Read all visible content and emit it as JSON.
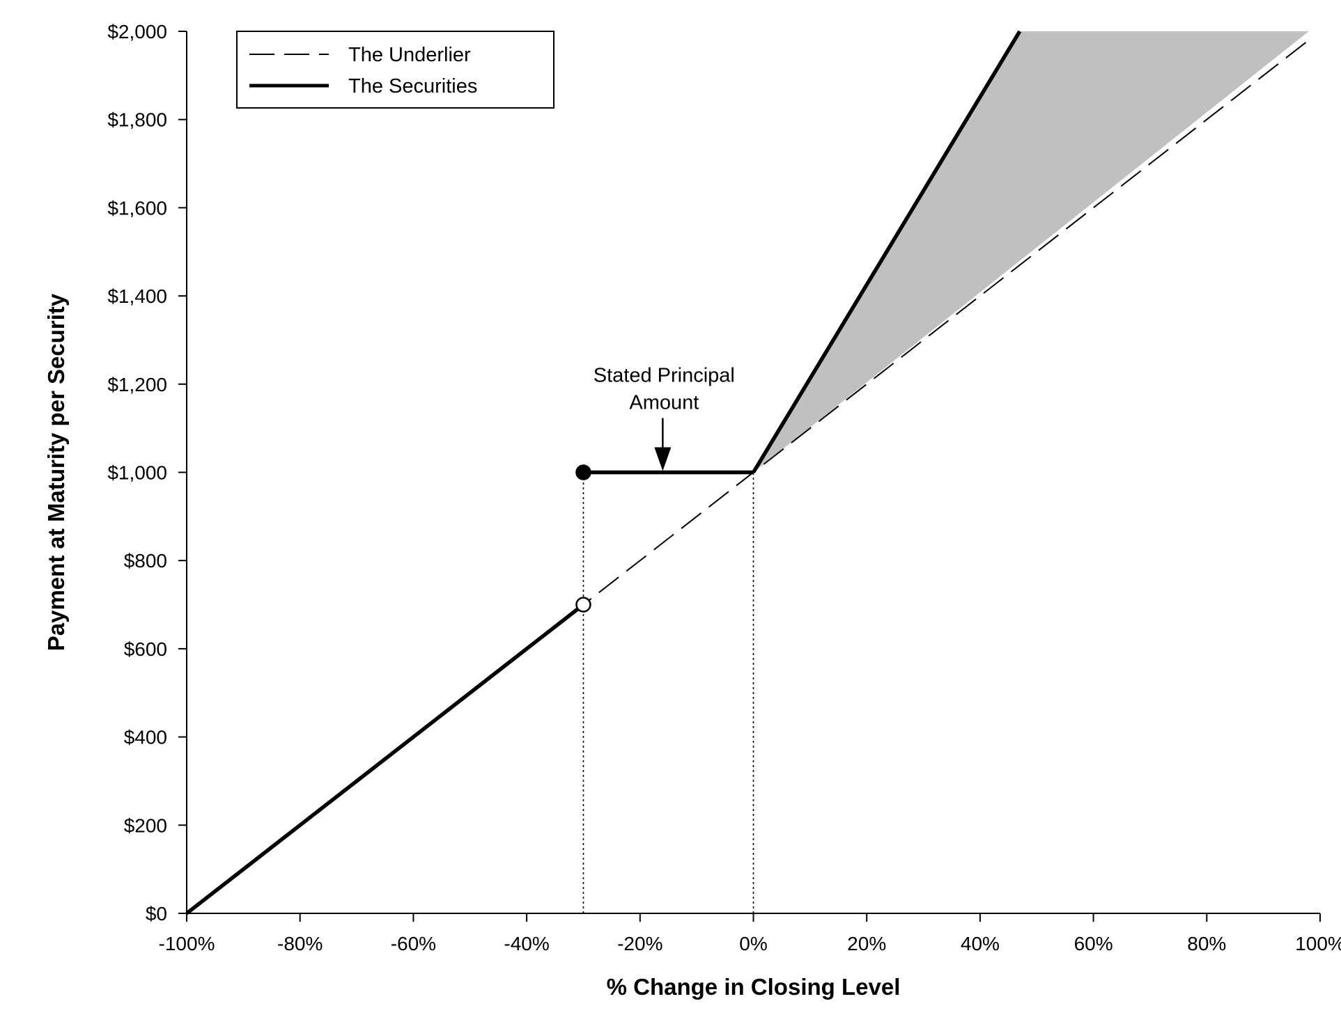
{
  "chart_data": {
    "type": "line",
    "xlabel": "% Change in Closing Level",
    "ylabel": "Payment at Maturity per Security",
    "xlim": [
      -100,
      100
    ],
    "ylim": [
      0,
      2000
    ],
    "x_ticks": [
      -100,
      -80,
      -60,
      -40,
      -20,
      0,
      20,
      40,
      60,
      80,
      100
    ],
    "x_tick_labels": [
      "-100%",
      "-80%",
      "-60%",
      "-40%",
      "-20%",
      "0%",
      "20%",
      "40%",
      "60%",
      "80%",
      "100%"
    ],
    "y_ticks": [
      0,
      200,
      400,
      600,
      800,
      1000,
      1200,
      1400,
      1600,
      1800,
      2000
    ],
    "y_tick_labels": [
      "$0",
      "$200",
      "$400",
      "$600",
      "$800",
      "$1,000",
      "$1,200",
      "$1,400",
      "$1,600",
      "$1,800",
      "$2,000"
    ],
    "grid": false,
    "legend_position": "top-left",
    "series": [
      {
        "name": "The Underlier",
        "style": "dashed",
        "color": "#000000",
        "points": [
          [
            -100,
            0
          ],
          [
            98,
            1980
          ]
        ]
      },
      {
        "name": "The Securities",
        "style": "solid-thick",
        "color": "#000000",
        "segments": [
          [
            [
              -100,
              0
            ],
            [
              -30,
              700
            ]
          ],
          [
            [
              -30,
              1000
            ],
            [
              0,
              1000
            ]
          ],
          [
            [
              0,
              1000
            ],
            [
              47,
              2000
            ]
          ]
        ]
      }
    ],
    "markers": [
      {
        "x": -30,
        "y": 1000,
        "fill": "filled"
      },
      {
        "x": -30,
        "y": 700,
        "fill": "open"
      }
    ],
    "reference_lines": [
      {
        "x": -30,
        "y_from": 0,
        "y_to": 1000,
        "style": "dotted"
      },
      {
        "x": 0,
        "y_from": 0,
        "y_to": 1000,
        "style": "dotted"
      }
    ],
    "shaded_region": {
      "color": "#c0c0c0",
      "polygon": [
        [
          0,
          1000
        ],
        [
          47,
          2000
        ],
        [
          98,
          2000
        ],
        [
          0,
          1000
        ]
      ]
    },
    "annotations": [
      {
        "text_lines": [
          "Stated Principal",
          "Amount"
        ],
        "arrow_to": {
          "x": -16,
          "y": 1000
        }
      }
    ]
  }
}
